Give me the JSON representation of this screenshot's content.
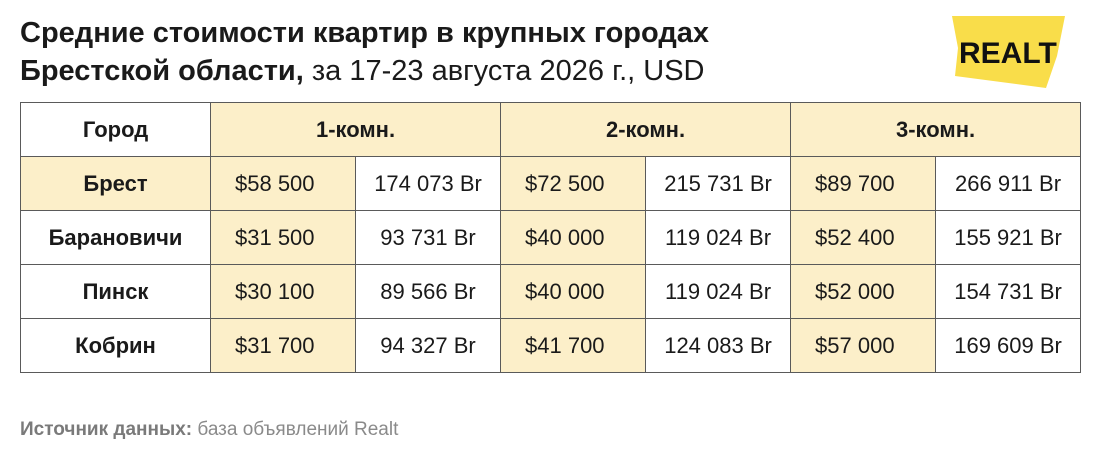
{
  "title": {
    "line1": "Средние стоимости квартир в крупных городах",
    "line2_bold": "Брестской области,",
    "line2_light": " за 17-23 августа 2026 г., USD"
  },
  "logo": {
    "text": "RЕALT",
    "color": "#f9dd4a"
  },
  "colors": {
    "highlight": "#fcefc9",
    "border": "#5a5a5a",
    "accent": "#f9dd4a"
  },
  "chart_data": {
    "type": "table",
    "header": {
      "city": "Город",
      "groups": [
        "1-комн.",
        "2-комн.",
        "3-комн."
      ]
    },
    "rows": [
      {
        "city": "Брест",
        "values": [
          [
            "$58 500",
            "174 073 Br"
          ],
          [
            "$72 500",
            "215 731 Br"
          ],
          [
            "$89 700",
            "266 911 Br"
          ]
        ]
      },
      {
        "city": "Барановичи",
        "values": [
          [
            "$31 500",
            "93 731 Br"
          ],
          [
            "$40 000",
            "119 024 Br"
          ],
          [
            "$52 400",
            "155 921 Br"
          ]
        ]
      },
      {
        "city": "Пинск",
        "values": [
          [
            "$30 100",
            "89 566 Br"
          ],
          [
            "$40 000",
            "119 024 Br"
          ],
          [
            "$52 000",
            "154 731 Br"
          ]
        ]
      },
      {
        "city": "Кобрин",
        "values": [
          [
            "$31 700",
            "94 327 Br"
          ],
          [
            "$41 700",
            "124 083 Br"
          ],
          [
            "$57 000",
            "169 609 Br"
          ]
        ]
      }
    ]
  },
  "source": {
    "label": "Источник данных:",
    "text": " база объявлений Realt"
  }
}
